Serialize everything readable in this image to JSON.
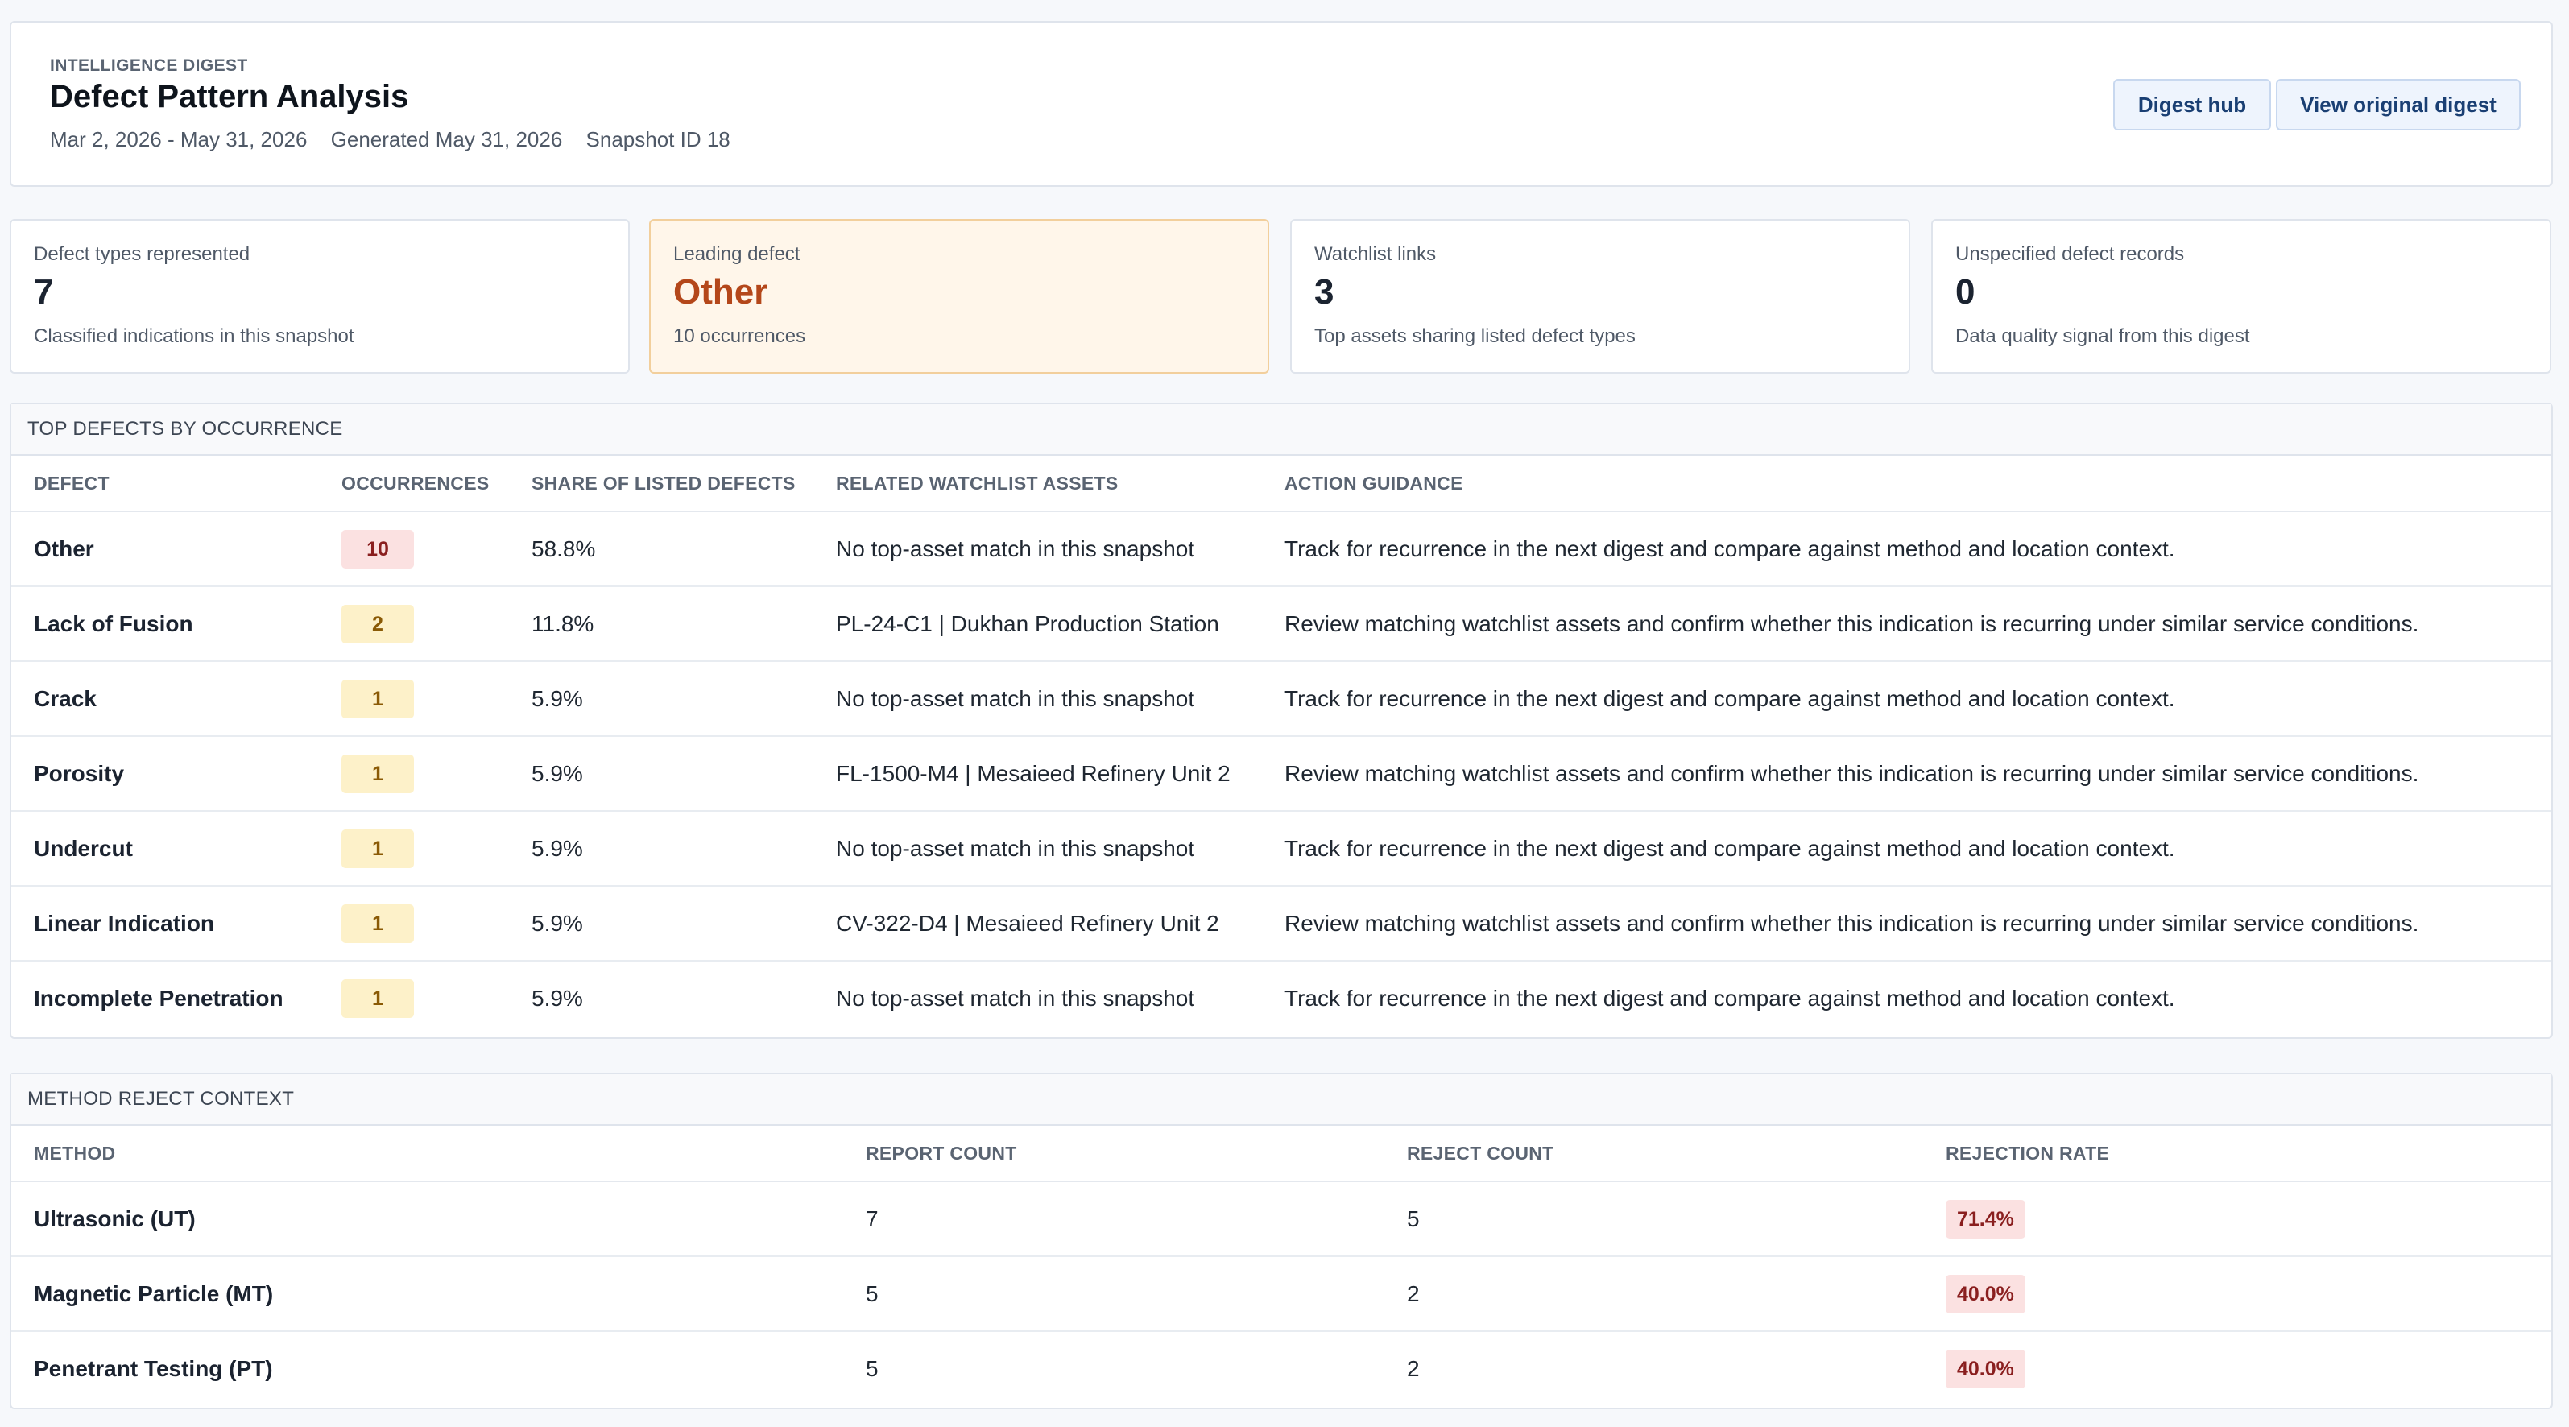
{
  "header": {
    "eyebrow": "INTELLIGENCE DIGEST",
    "title": "Defect Pattern Analysis",
    "date_range": "Mar 2, 2026 - May 31, 2026",
    "generated": "Generated May 31, 2026",
    "snapshot": "Snapshot ID 18",
    "buttons": {
      "hub": "Digest hub",
      "original": "View original digest"
    }
  },
  "cards": [
    {
      "label": "Defect types represented",
      "value": "7",
      "sub": "Classified indications in this snapshot"
    },
    {
      "label": "Leading defect",
      "value": "Other",
      "sub": "10 occurrences"
    },
    {
      "label": "Watchlist links",
      "value": "3",
      "sub": "Top assets sharing listed defect types"
    },
    {
      "label": "Unspecified defect records",
      "value": "0",
      "sub": "Data quality signal from this digest"
    }
  ],
  "defects": {
    "section_title": "TOP DEFECTS BY OCCURRENCE",
    "columns": [
      "DEFECT",
      "OCCURRENCES",
      "SHARE OF LISTED DEFECTS",
      "RELATED WATCHLIST ASSETS",
      "ACTION GUIDANCE"
    ],
    "rows": [
      {
        "defect": "Other",
        "occurrences": "10",
        "level": "red",
        "share": "58.8%",
        "assets": "No top-asset match in this snapshot",
        "guidance": "Track for recurrence in the next digest and compare against method and location context."
      },
      {
        "defect": "Lack of Fusion",
        "occurrences": "2",
        "level": "yellow",
        "share": "11.8%",
        "assets": "PL-24-C1 | Dukhan Production Station",
        "guidance": "Review matching watchlist assets and confirm whether this indication is recurring under similar service conditions."
      },
      {
        "defect": "Crack",
        "occurrences": "1",
        "level": "yellow",
        "share": "5.9%",
        "assets": "No top-asset match in this snapshot",
        "guidance": "Track for recurrence in the next digest and compare against method and location context."
      },
      {
        "defect": "Porosity",
        "occurrences": "1",
        "level": "yellow",
        "share": "5.9%",
        "assets": "FL-1500-M4 | Mesaieed Refinery Unit 2",
        "guidance": "Review matching watchlist assets and confirm whether this indication is recurring under similar service conditions."
      },
      {
        "defect": "Undercut",
        "occurrences": "1",
        "level": "yellow",
        "share": "5.9%",
        "assets": "No top-asset match in this snapshot",
        "guidance": "Track for recurrence in the next digest and compare against method and location context."
      },
      {
        "defect": "Linear Indication",
        "occurrences": "1",
        "level": "yellow",
        "share": "5.9%",
        "assets": "CV-322-D4 | Mesaieed Refinery Unit 2",
        "guidance": "Review matching watchlist assets and confirm whether this indication is recurring under similar service conditions."
      },
      {
        "defect": "Incomplete Penetration",
        "occurrences": "1",
        "level": "yellow",
        "share": "5.9%",
        "assets": "No top-asset match in this snapshot",
        "guidance": "Track for recurrence in the next digest and compare against method and location context."
      }
    ]
  },
  "methods": {
    "section_title": "METHOD REJECT CONTEXT",
    "columns": [
      "METHOD",
      "REPORT COUNT",
      "REJECT COUNT",
      "REJECTION RATE"
    ],
    "rows": [
      {
        "method": "Ultrasonic (UT)",
        "reports": "7",
        "rejects": "5",
        "rate": "71.4%"
      },
      {
        "method": "Magnetic Particle (MT)",
        "reports": "5",
        "rejects": "2",
        "rate": "40.0%"
      },
      {
        "method": "Penetrant Testing (PT)",
        "reports": "5",
        "rejects": "2",
        "rate": "40.0%"
      }
    ]
  },
  "colors": {
    "accent": "#1a3f73",
    "leading_defect": "#b4471a",
    "badge_red_bg": "#fbe1e1",
    "badge_yellow_bg": "#fdf1c9"
  }
}
